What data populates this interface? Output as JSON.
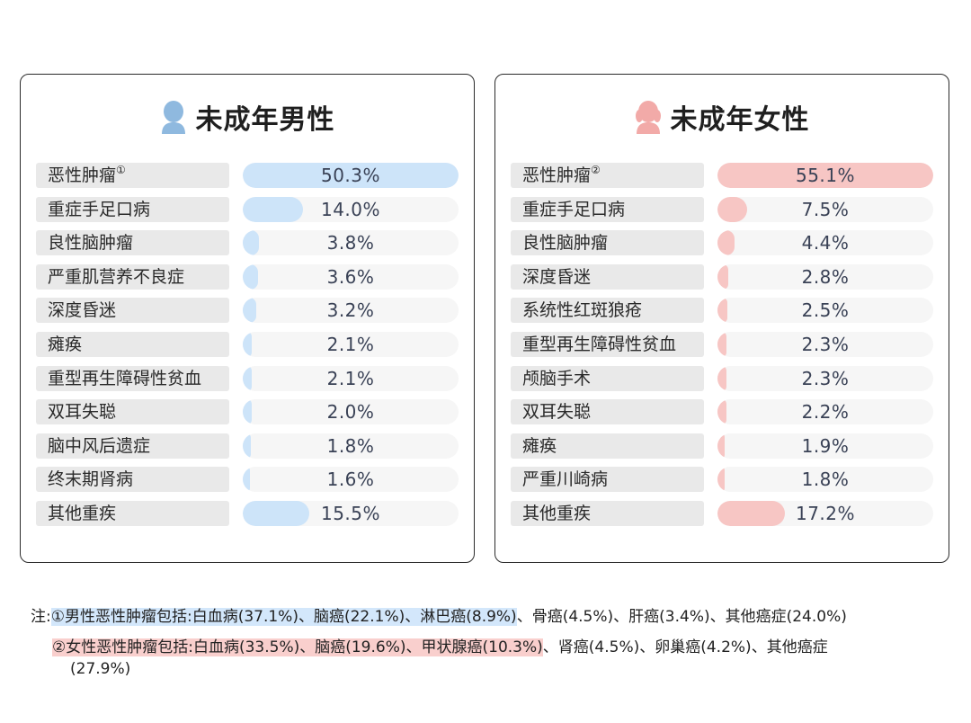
{
  "colors": {
    "male_bar": "#cde4f9",
    "female_bar": "#f7c6c4",
    "male_icon": "#8fb9df",
    "female_icon": "#f2aaa8"
  },
  "male": {
    "title": "未成年男性",
    "icon": "boy-head-icon",
    "rows": [
      {
        "label": "恶性肿瘤",
        "sup": "①",
        "value": 50.3,
        "text": "50.3%"
      },
      {
        "label": "重症手足口病",
        "value": 14.0,
        "text": "14.0%"
      },
      {
        "label": "良性脑肿瘤",
        "value": 3.8,
        "text": "3.8%"
      },
      {
        "label": "严重肌营养不良症",
        "value": 3.6,
        "text": "3.6%"
      },
      {
        "label": "深度昏迷",
        "value": 3.2,
        "text": "3.2%"
      },
      {
        "label": "瘫痪",
        "value": 2.1,
        "text": "2.1%"
      },
      {
        "label": "重型再生障碍性贫血",
        "value": 2.1,
        "text": "2.1%"
      },
      {
        "label": "双耳失聪",
        "value": 2.0,
        "text": "2.0%"
      },
      {
        "label": "脑中风后遗症",
        "value": 1.8,
        "text": "1.8%"
      },
      {
        "label": "终末期肾病",
        "value": 1.6,
        "text": "1.6%"
      },
      {
        "label": "其他重疾",
        "value": 15.5,
        "text": "15.5%"
      }
    ]
  },
  "female": {
    "title": "未成年女性",
    "icon": "girl-head-icon",
    "rows": [
      {
        "label": "恶性肿瘤",
        "sup": "②",
        "value": 55.1,
        "text": "55.1%"
      },
      {
        "label": "重症手足口病",
        "value": 7.5,
        "text": "7.5%"
      },
      {
        "label": "良性脑肿瘤",
        "value": 4.4,
        "text": "4.4%"
      },
      {
        "label": "深度昏迷",
        "value": 2.8,
        "text": "2.8%"
      },
      {
        "label": "系统性红斑狼疮",
        "value": 2.5,
        "text": "2.5%"
      },
      {
        "label": "重型再生障碍性贫血",
        "value": 2.3,
        "text": "2.3%"
      },
      {
        "label": "颅脑手术",
        "value": 2.3,
        "text": "2.3%"
      },
      {
        "label": "双耳失聪",
        "value": 2.2,
        "text": "2.2%"
      },
      {
        "label": "瘫痪",
        "value": 1.9,
        "text": "1.9%"
      },
      {
        "label": "严重川崎病",
        "value": 1.8,
        "text": "1.8%"
      },
      {
        "label": "其他重疾",
        "value": 17.2,
        "text": "17.2%"
      }
    ]
  },
  "chart_data": [
    {
      "type": "bar",
      "title": "未成年男性",
      "categories": [
        "恶性肿瘤",
        "重症手足口病",
        "良性脑肿瘤",
        "严重肌营养不良症",
        "深度昏迷",
        "瘫痪",
        "重型再生障碍性贫血",
        "双耳失聪",
        "脑中风后遗症",
        "终末期肾病",
        "其他重疾"
      ],
      "values": [
        50.3,
        14.0,
        3.8,
        3.6,
        3.2,
        2.1,
        2.1,
        2.0,
        1.8,
        1.6,
        15.5
      ]
    },
    {
      "type": "bar",
      "title": "未成年女性",
      "categories": [
        "恶性肿瘤",
        "重症手足口病",
        "良性脑肿瘤",
        "深度昏迷",
        "系统性红斑狼疮",
        "重型再生障碍性贫血",
        "颅脑手术",
        "双耳失聪",
        "瘫痪",
        "严重川崎病",
        "其他重疾"
      ],
      "values": [
        55.1,
        7.5,
        4.4,
        2.8,
        2.5,
        2.3,
        2.3,
        2.2,
        1.9,
        1.8,
        17.2
      ]
    }
  ],
  "notes": {
    "note1_prefix": "注:",
    "note1_hl": "①男性恶性肿瘤包括:白血病(37.1%)、脑癌(22.1%)、淋巴癌(8.9%)",
    "note1_rest": "、骨癌(4.5%)、肝癌(3.4%)、其他癌症(24.0%)",
    "note2_hl": "②女性恶性肿瘤包括:白血病(33.5%)、脑癌(19.6%)、甲状腺癌(10.3%)",
    "note2_rest": "、肾癌(4.5%)、卵巢癌(4.2%)、其他癌症",
    "note2_cont": "(27.9%)"
  }
}
